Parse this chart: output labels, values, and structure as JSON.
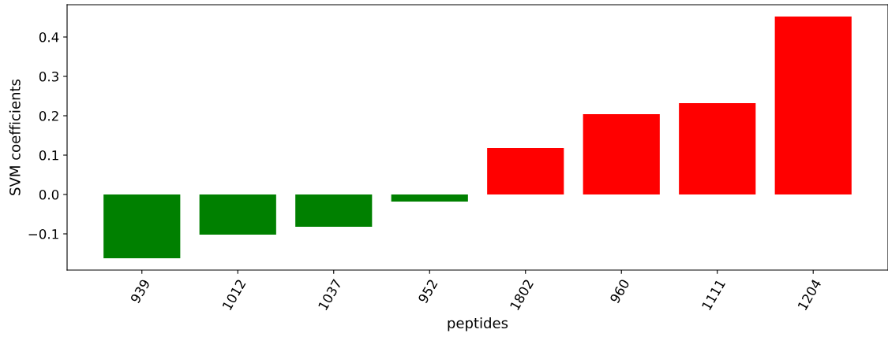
{
  "chart_data": {
    "type": "bar",
    "xlabel": "peptides",
    "ylabel": "SVM coefficients",
    "categories": [
      "939",
      "1012",
      "1037",
      "952",
      "1802",
      "960",
      "1111",
      "1204"
    ],
    "values": [
      -0.162,
      -0.102,
      -0.082,
      -0.018,
      0.118,
      0.204,
      0.232,
      0.452
    ],
    "colors": [
      "#008000",
      "#008000",
      "#008000",
      "#008000",
      "#ff0000",
      "#ff0000",
      "#ff0000",
      "#ff0000"
    ],
    "ylim": [
      -0.192,
      0.482
    ],
    "yticks": [
      {
        "value": -0.1,
        "label": "−0.1"
      },
      {
        "value": 0.0,
        "label": "0.0"
      },
      {
        "value": 0.1,
        "label": "0.1"
      },
      {
        "value": 0.2,
        "label": "0.2"
      },
      {
        "value": 0.3,
        "label": "0.3"
      },
      {
        "value": 0.4,
        "label": "0.4"
      }
    ],
    "grid": false,
    "legend": false
  }
}
